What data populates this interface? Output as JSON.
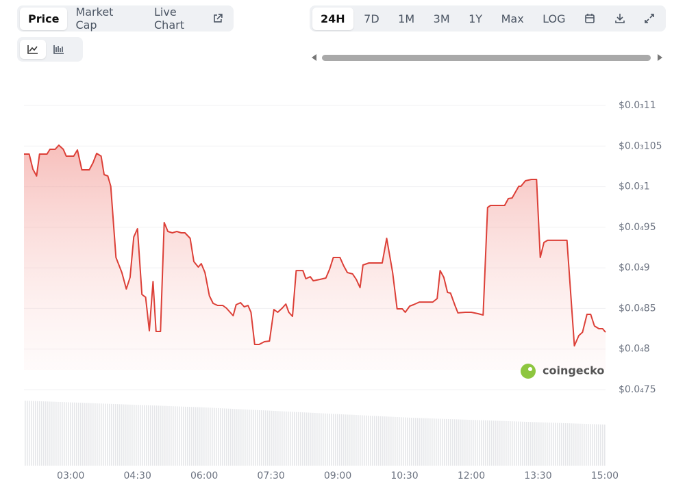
{
  "toolbar": {
    "tabs": [
      "Price",
      "Market Cap",
      "Live Chart"
    ],
    "ranges": [
      "24H",
      "7D",
      "1M",
      "3M",
      "1Y",
      "Max",
      "LOG"
    ]
  },
  "watermark": "coingecko",
  "chart_data": {
    "type": "line",
    "x": [
      "01:57",
      "02:04",
      "02:09",
      "02:14",
      "02:18",
      "02:28",
      "02:32",
      "02:39",
      "02:44",
      "02:50",
      "02:54",
      "03:04",
      "03:09",
      "03:15",
      "03:25",
      "03:30",
      "03:35",
      "03:41",
      "03:45",
      "03:50",
      "03:54",
      "04:01",
      "04:09",
      "04:15",
      "04:20",
      "04:25",
      "04:30",
      "04:36",
      "04:41",
      "04:46",
      "04:51",
      "04:55",
      "05:01",
      "05:06",
      "05:11",
      "05:17",
      "05:23",
      "05:29",
      "05:34",
      "05:41",
      "05:46",
      "05:52",
      "05:56",
      "06:01",
      "06:07",
      "06:12",
      "06:18",
      "06:25",
      "06:30",
      "06:39",
      "06:43",
      "06:49",
      "06:54",
      "06:59",
      "07:03",
      "07:08",
      "07:14",
      "07:21",
      "07:28",
      "07:34",
      "07:39",
      "07:45",
      "07:50",
      "07:54",
      "07:59",
      "08:04",
      "08:13",
      "08:17",
      "08:23",
      "08:27",
      "08:36",
      "08:44",
      "08:49",
      "08:54",
      "09:03",
      "09:08",
      "09:13",
      "09:20",
      "09:25",
      "09:30",
      "09:34",
      "09:42",
      "10:00",
      "10:06",
      "10:14",
      "10:20",
      "10:27",
      "10:31",
      "10:37",
      "10:42",
      "10:50",
      "11:08",
      "11:14",
      "11:18",
      "11:23",
      "11:28",
      "11:32",
      "11:38",
      "11:42",
      "11:52",
      "12:00",
      "12:09",
      "12:16",
      "12:22",
      "12:26",
      "12:45",
      "12:50",
      "12:55",
      "13:04",
      "13:07",
      "13:13",
      "13:21",
      "13:28",
      "13:33",
      "13:38",
      "13:43",
      "14:09",
      "14:19",
      "14:25",
      "14:30",
      "14:36",
      "14:41",
      "14:46",
      "14:52",
      "14:57",
      "15:01"
    ],
    "series": [
      {
        "color": "#dc3f37",
        "values": [
          0.00010401,
          0.00010401,
          0.00010216,
          0.00010131,
          0.00010401,
          0.00010401,
          0.0001046,
          0.0001046,
          0.00010511,
          0.0001046,
          0.00010376,
          0.00010376,
          0.00010452,
          0.00010207,
          0.00010207,
          0.00010292,
          0.0001041,
          0.00010376,
          0.00010148,
          0.00010131,
          0.00010005,
          9.128e-05,
          8.942e-05,
          8.74e-05,
          8.883e-05,
          9.381e-05,
          9.482e-05,
          8.672e-05,
          8.638e-05,
          8.225e-05,
          8.832e-05,
          8.217e-05,
          8.217e-05,
          9.558e-05,
          9.448e-05,
          9.431e-05,
          9.448e-05,
          9.431e-05,
          9.431e-05,
          9.364e-05,
          9.077e-05,
          9.01e-05,
          9.052e-05,
          8.942e-05,
          8.655e-05,
          8.563e-05,
          8.537e-05,
          8.537e-05,
          8.504e-05,
          8.411e-05,
          8.546e-05,
          8.571e-05,
          8.52e-05,
          8.537e-05,
          8.453e-05,
          8.057e-05,
          8.057e-05,
          8.09e-05,
          8.099e-05,
          8.487e-05,
          8.453e-05,
          8.504e-05,
          8.554e-05,
          8.453e-05,
          8.402e-05,
          8.967e-05,
          8.967e-05,
          8.866e-05,
          8.891e-05,
          8.841e-05,
          8.858e-05,
          8.875e-05,
          8.984e-05,
          9.128e-05,
          9.128e-05,
          9.026e-05,
          8.942e-05,
          8.925e-05,
          8.858e-05,
          8.757e-05,
          9.035e-05,
          9.06e-05,
          9.06e-05,
          9.364e-05,
          8.942e-05,
          8.495e-05,
          8.495e-05,
          8.453e-05,
          8.529e-05,
          8.546e-05,
          8.579e-05,
          8.579e-05,
          8.622e-05,
          8.967e-05,
          8.883e-05,
          8.698e-05,
          8.689e-05,
          8.537e-05,
          8.445e-05,
          8.453e-05,
          8.453e-05,
          8.436e-05,
          8.419e-05,
          9.743e-05,
          9.769e-05,
          9.769e-05,
          9.853e-05,
          9.861e-05,
          0.00010005,
          0.00010005,
          0.00010072,
          0.00010089,
          0.00010089,
          9.128e-05,
          9.313e-05,
          9.339e-05,
          9.339e-05,
          8.04e-05,
          8.166e-05,
          8.208e-05,
          8.428e-05,
          8.428e-05,
          8.284e-05,
          8.251e-05,
          8.251e-05,
          8.208e-05
        ]
      }
    ],
    "xlim": [
      "01:57",
      "15:01"
    ],
    "xticks": [
      "03:00",
      "04:30",
      "06:00",
      "07:30",
      "09:00",
      "10:30",
      "12:00",
      "13:30",
      "15:00"
    ],
    "ylim": [
      7.5e-05,
      0.00011
    ],
    "yticks": [
      {
        "value": 0.00011,
        "label": "$0.0₃11"
      },
      {
        "value": 0.000105,
        "label": "$0.0₃105"
      },
      {
        "value": 0.0001,
        "label": "$0.0₃1"
      },
      {
        "value": 9.5e-05,
        "label": "$0.0₄95"
      },
      {
        "value": 9e-05,
        "label": "$0.0₄9"
      },
      {
        "value": 8.5e-05,
        "label": "$0.0₄85"
      },
      {
        "value": 8e-05,
        "label": "$0.0₄8"
      },
      {
        "value": 7.5e-05,
        "label": "$0.0₄75"
      }
    ],
    "grid": true
  }
}
